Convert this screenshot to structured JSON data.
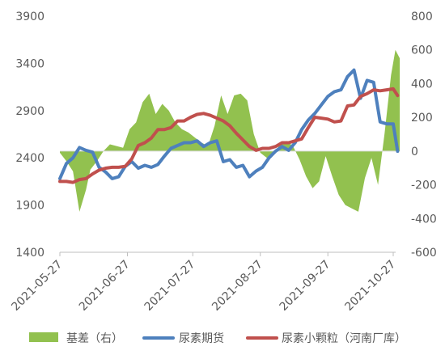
{
  "chart_data": {
    "type": "line",
    "title": "",
    "x_tick_labels": [
      "2021-05-27",
      "2021-06-27",
      "2021-07-27",
      "2021-08-27",
      "2021-09-27",
      "2021-10-27"
    ],
    "y_left": {
      "min": 1400,
      "max": 3900,
      "ticks": [
        1400,
        1900,
        2400,
        2900,
        3400,
        3900
      ]
    },
    "y_right": {
      "min": -600,
      "max": 800,
      "ticks": [
        -600,
        -400,
        -200,
        0,
        200,
        400,
        600,
        800
      ]
    },
    "legend_position": "bottom",
    "series": [
      {
        "name": "基差（右）",
        "kind": "area",
        "axis": "right",
        "color": "#92C14F",
        "points": [
          [
            "2021-05-27",
            -10
          ],
          [
            "2021-05-30",
            -60
          ],
          [
            "2021-06-02",
            -120
          ],
          [
            "2021-06-05",
            -360
          ],
          [
            "2021-06-08",
            -230
          ],
          [
            "2021-06-10",
            -110
          ],
          [
            "2021-06-13",
            -60
          ],
          [
            "2021-06-16",
            0
          ],
          [
            "2021-06-19",
            40
          ],
          [
            "2021-06-22",
            30
          ],
          [
            "2021-06-25",
            20
          ],
          [
            "2021-06-28",
            130
          ],
          [
            "2021-07-01",
            170
          ],
          [
            "2021-07-04",
            290
          ],
          [
            "2021-07-07",
            340
          ],
          [
            "2021-07-10",
            220
          ],
          [
            "2021-07-13",
            280
          ],
          [
            "2021-07-16",
            240
          ],
          [
            "2021-07-19",
            170
          ],
          [
            "2021-07-22",
            130
          ],
          [
            "2021-07-25",
            110
          ],
          [
            "2021-07-28",
            80
          ],
          [
            "2021-07-31",
            50
          ],
          [
            "2021-08-03",
            30
          ],
          [
            "2021-08-06",
            150
          ],
          [
            "2021-08-09",
            330
          ],
          [
            "2021-08-12",
            220
          ],
          [
            "2021-08-15",
            330
          ],
          [
            "2021-08-18",
            340
          ],
          [
            "2021-08-21",
            300
          ],
          [
            "2021-08-24",
            100
          ],
          [
            "2021-08-27",
            -10
          ],
          [
            "2021-08-30",
            -40
          ],
          [
            "2021-09-02",
            -20
          ],
          [
            "2021-09-05",
            40
          ],
          [
            "2021-09-08",
            60
          ],
          [
            "2021-09-11",
            30
          ],
          [
            "2021-09-14",
            -50
          ],
          [
            "2021-09-17",
            -150
          ],
          [
            "2021-09-20",
            -220
          ],
          [
            "2021-09-23",
            -180
          ],
          [
            "2021-09-26",
            -30
          ],
          [
            "2021-09-29",
            -150
          ],
          [
            "2021-10-02",
            -260
          ],
          [
            "2021-10-05",
            -320
          ],
          [
            "2021-10-08",
            -340
          ],
          [
            "2021-10-11",
            -360
          ],
          [
            "2021-10-14",
            -160
          ],
          [
            "2021-10-17",
            -40
          ],
          [
            "2021-10-20",
            -200
          ],
          [
            "2021-10-23",
            100
          ],
          [
            "2021-10-26",
            450
          ],
          [
            "2021-10-28",
            600
          ],
          [
            "2021-10-30",
            550
          ]
        ]
      },
      {
        "name": "尿素期货",
        "kind": "line",
        "axis": "left",
        "color": "#4E80BD",
        "points": [
          [
            "2021-05-27",
            2180
          ],
          [
            "2021-05-30",
            2340
          ],
          [
            "2021-06-02",
            2400
          ],
          [
            "2021-06-05",
            2510
          ],
          [
            "2021-06-08",
            2480
          ],
          [
            "2021-06-11",
            2460
          ],
          [
            "2021-06-14",
            2300
          ],
          [
            "2021-06-17",
            2250
          ],
          [
            "2021-06-20",
            2180
          ],
          [
            "2021-06-23",
            2200
          ],
          [
            "2021-06-26",
            2310
          ],
          [
            "2021-06-29",
            2360
          ],
          [
            "2021-07-02",
            2290
          ],
          [
            "2021-07-05",
            2320
          ],
          [
            "2021-07-08",
            2300
          ],
          [
            "2021-07-11",
            2330
          ],
          [
            "2021-07-14",
            2420
          ],
          [
            "2021-07-17",
            2500
          ],
          [
            "2021-07-20",
            2530
          ],
          [
            "2021-07-23",
            2560
          ],
          [
            "2021-07-26",
            2560
          ],
          [
            "2021-07-29",
            2580
          ],
          [
            "2021-08-01",
            2520
          ],
          [
            "2021-08-04",
            2560
          ],
          [
            "2021-08-07",
            2580
          ],
          [
            "2021-08-10",
            2360
          ],
          [
            "2021-08-13",
            2380
          ],
          [
            "2021-08-16",
            2300
          ],
          [
            "2021-08-19",
            2320
          ],
          [
            "2021-08-22",
            2200
          ],
          [
            "2021-08-25",
            2260
          ],
          [
            "2021-08-28",
            2300
          ],
          [
            "2021-08-31",
            2400
          ],
          [
            "2021-09-03",
            2470
          ],
          [
            "2021-09-06",
            2520
          ],
          [
            "2021-09-09",
            2480
          ],
          [
            "2021-09-12",
            2560
          ],
          [
            "2021-09-15",
            2700
          ],
          [
            "2021-09-18",
            2800
          ],
          [
            "2021-09-21",
            2870
          ],
          [
            "2021-09-24",
            2960
          ],
          [
            "2021-09-27",
            3050
          ],
          [
            "2021-09-30",
            3100
          ],
          [
            "2021-10-03",
            3120
          ],
          [
            "2021-10-06",
            3260
          ],
          [
            "2021-10-09",
            3330
          ],
          [
            "2021-10-12",
            3030
          ],
          [
            "2021-10-15",
            3220
          ],
          [
            "2021-10-18",
            3200
          ],
          [
            "2021-10-21",
            2780
          ],
          [
            "2021-10-24",
            2760
          ],
          [
            "2021-10-27",
            2760
          ],
          [
            "2021-10-29",
            2470
          ]
        ]
      },
      {
        "name": "尿素小颗粒（河南厂库）",
        "kind": "line",
        "axis": "left",
        "color": "#C0504D",
        "points": [
          [
            "2021-05-27",
            2150
          ],
          [
            "2021-05-30",
            2150
          ],
          [
            "2021-06-02",
            2140
          ],
          [
            "2021-06-05",
            2170
          ],
          [
            "2021-06-08",
            2180
          ],
          [
            "2021-06-11",
            2230
          ],
          [
            "2021-06-14",
            2270
          ],
          [
            "2021-06-17",
            2290
          ],
          [
            "2021-06-20",
            2300
          ],
          [
            "2021-06-23",
            2300
          ],
          [
            "2021-06-26",
            2310
          ],
          [
            "2021-06-29",
            2390
          ],
          [
            "2021-07-02",
            2530
          ],
          [
            "2021-07-05",
            2560
          ],
          [
            "2021-07-08",
            2610
          ],
          [
            "2021-07-11",
            2700
          ],
          [
            "2021-07-14",
            2700
          ],
          [
            "2021-07-17",
            2720
          ],
          [
            "2021-07-20",
            2790
          ],
          [
            "2021-07-23",
            2790
          ],
          [
            "2021-07-26",
            2830
          ],
          [
            "2021-07-29",
            2860
          ],
          [
            "2021-08-01",
            2870
          ],
          [
            "2021-08-04",
            2850
          ],
          [
            "2021-08-07",
            2820
          ],
          [
            "2021-08-10",
            2790
          ],
          [
            "2021-08-13",
            2740
          ],
          [
            "2021-08-16",
            2660
          ],
          [
            "2021-08-19",
            2590
          ],
          [
            "2021-08-22",
            2520
          ],
          [
            "2021-08-25",
            2480
          ],
          [
            "2021-08-28",
            2500
          ],
          [
            "2021-08-31",
            2500
          ],
          [
            "2021-09-03",
            2520
          ],
          [
            "2021-09-06",
            2560
          ],
          [
            "2021-09-09",
            2560
          ],
          [
            "2021-09-12",
            2580
          ],
          [
            "2021-09-15",
            2600
          ],
          [
            "2021-09-18",
            2720
          ],
          [
            "2021-09-21",
            2830
          ],
          [
            "2021-09-24",
            2820
          ],
          [
            "2021-09-27",
            2810
          ],
          [
            "2021-09-30",
            2780
          ],
          [
            "2021-10-03",
            2790
          ],
          [
            "2021-10-06",
            2950
          ],
          [
            "2021-10-09",
            2960
          ],
          [
            "2021-10-12",
            3050
          ],
          [
            "2021-10-15",
            3080
          ],
          [
            "2021-10-18",
            3120
          ],
          [
            "2021-10-21",
            3110
          ],
          [
            "2021-10-24",
            3120
          ],
          [
            "2021-10-27",
            3130
          ],
          [
            "2021-10-29",
            3060
          ]
        ]
      }
    ]
  }
}
